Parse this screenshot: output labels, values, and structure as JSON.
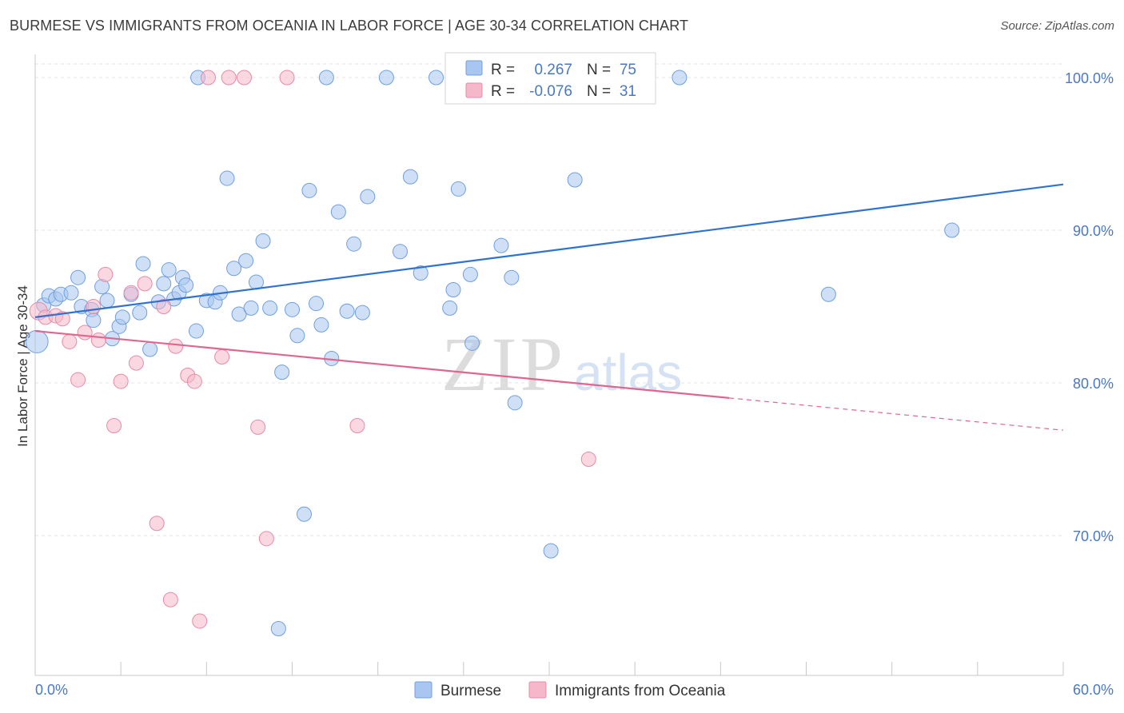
{
  "header": {
    "title": "BURMESE VS IMMIGRANTS FROM OCEANIA IN LABOR FORCE | AGE 30-34 CORRELATION CHART",
    "source": "Source: ZipAtlas.com"
  },
  "watermark": {
    "zip": "ZIP",
    "atlas": "atlas"
  },
  "legend": {
    "rows": [
      {
        "r_label": "R =",
        "r_value": "0.267",
        "n_label": "N =",
        "n_value": "75",
        "color": "#a8c6ef"
      },
      {
        "r_label": "R =",
        "r_value": "-0.076",
        "n_label": "N =",
        "n_value": "31",
        "color": "#f4b8ca"
      }
    ]
  },
  "bottom_legend": [
    {
      "label": "Burmese",
      "color": "#a8c6ef"
    },
    {
      "label": "Immigrants from Oceania",
      "color": "#f4b8ca"
    }
  ],
  "chart_data": {
    "type": "scatter",
    "title": "BURMESE VS IMMIGRANTS FROM OCEANIA IN LABOR FORCE | AGE 30-34 CORRELATION CHART",
    "xlabel": "",
    "ylabel": "In Labor Force | Age 30-34",
    "xlim": [
      0,
      60
    ],
    "ylim": [
      62,
      101
    ],
    "x_tick_labels": [
      "0.0%",
      "60.0%"
    ],
    "y_ticks": [
      70,
      80,
      90,
      100
    ],
    "y_tick_labels": [
      "70.0%",
      "80.0%",
      "90.0%",
      "100.0%"
    ],
    "grid": true,
    "series": [
      {
        "name": "Burmese",
        "color": "#a8c6ef",
        "stroke": "#6f9fe0",
        "line_color": "#2f73d0",
        "trend": {
          "x": [
            0,
            60
          ],
          "y": [
            84.3,
            93.0
          ],
          "dashed_from": null
        },
        "points": [
          [
            0.1,
            82.7
          ],
          [
            0.5,
            85.1
          ],
          [
            0.8,
            85.7
          ],
          [
            1.2,
            85.5
          ],
          [
            1.5,
            85.8
          ],
          [
            2.1,
            85.9
          ],
          [
            2.5,
            86.9
          ],
          [
            2.7,
            85.0
          ],
          [
            3.3,
            84.8
          ],
          [
            3.4,
            84.1
          ],
          [
            3.9,
            86.3
          ],
          [
            4.2,
            85.4
          ],
          [
            4.5,
            82.9
          ],
          [
            4.9,
            83.7
          ],
          [
            5.1,
            84.3
          ],
          [
            5.6,
            85.8
          ],
          [
            6.1,
            84.6
          ],
          [
            6.3,
            87.8
          ],
          [
            6.7,
            82.2
          ],
          [
            7.2,
            85.3
          ],
          [
            7.5,
            86.5
          ],
          [
            7.8,
            87.4
          ],
          [
            8.1,
            85.5
          ],
          [
            8.4,
            85.9
          ],
          [
            8.6,
            86.9
          ],
          [
            8.8,
            86.4
          ],
          [
            9.4,
            83.4
          ],
          [
            9.5,
            100.0
          ],
          [
            10.0,
            85.4
          ],
          [
            10.5,
            85.3
          ],
          [
            10.8,
            85.9
          ],
          [
            11.2,
            93.4
          ],
          [
            11.6,
            87.5
          ],
          [
            11.9,
            84.5
          ],
          [
            12.3,
            88.0
          ],
          [
            12.6,
            84.9
          ],
          [
            12.9,
            86.6
          ],
          [
            13.3,
            89.3
          ],
          [
            13.7,
            84.9
          ],
          [
            14.2,
            63.9
          ],
          [
            14.4,
            80.7
          ],
          [
            15.0,
            84.8
          ],
          [
            15.3,
            83.1
          ],
          [
            15.7,
            71.4
          ],
          [
            16.0,
            92.6
          ],
          [
            16.4,
            85.2
          ],
          [
            16.7,
            83.8
          ],
          [
            17.0,
            100.0
          ],
          [
            17.3,
            81.6
          ],
          [
            17.7,
            91.2
          ],
          [
            18.2,
            84.7
          ],
          [
            18.6,
            89.1
          ],
          [
            19.1,
            84.6
          ],
          [
            19.4,
            92.2
          ],
          [
            20.5,
            100.0
          ],
          [
            21.3,
            88.6
          ],
          [
            21.9,
            93.5
          ],
          [
            22.5,
            87.2
          ],
          [
            23.4,
            100.0
          ],
          [
            24.2,
            84.9
          ],
          [
            24.4,
            86.1
          ],
          [
            24.7,
            92.7
          ],
          [
            25.4,
            87.1
          ],
          [
            25.5,
            82.6
          ],
          [
            26.4,
            100.0
          ],
          [
            27.2,
            89.0
          ],
          [
            27.8,
            86.9
          ],
          [
            28.0,
            78.7
          ],
          [
            29.5,
            100.0
          ],
          [
            30.1,
            69.0
          ],
          [
            31.5,
            93.3
          ],
          [
            32.1,
            100.0
          ],
          [
            37.6,
            100.0
          ],
          [
            46.3,
            85.8
          ],
          [
            53.5,
            90.0
          ]
        ]
      },
      {
        "name": "Immigrants from Oceania",
        "color": "#f4b8ca",
        "stroke": "#e88aa6",
        "line_color": "#e06690",
        "trend": {
          "x": [
            0,
            60
          ],
          "y": [
            83.4,
            76.9
          ],
          "dashed_from": 40.5
        },
        "points": [
          [
            0.2,
            84.7
          ],
          [
            0.6,
            84.3
          ],
          [
            1.2,
            84.4
          ],
          [
            1.6,
            84.2
          ],
          [
            2.0,
            82.7
          ],
          [
            2.5,
            80.2
          ],
          [
            2.9,
            83.3
          ],
          [
            3.4,
            85.0
          ],
          [
            3.7,
            82.8
          ],
          [
            4.1,
            87.1
          ],
          [
            4.6,
            77.2
          ],
          [
            5.0,
            80.1
          ],
          [
            5.6,
            85.9
          ],
          [
            5.9,
            81.3
          ],
          [
            6.4,
            86.5
          ],
          [
            7.1,
            70.8
          ],
          [
            7.5,
            85.0
          ],
          [
            7.9,
            65.8
          ],
          [
            8.2,
            82.4
          ],
          [
            8.9,
            80.5
          ],
          [
            9.3,
            80.1
          ],
          [
            9.6,
            64.4
          ],
          [
            10.1,
            100.0
          ],
          [
            10.9,
            81.7
          ],
          [
            11.3,
            100.0
          ],
          [
            12.2,
            100.0
          ],
          [
            13.0,
            77.1
          ],
          [
            13.5,
            69.8
          ],
          [
            14.7,
            100.0
          ],
          [
            18.8,
            77.2
          ],
          [
            32.3,
            75.0
          ]
        ]
      }
    ]
  }
}
